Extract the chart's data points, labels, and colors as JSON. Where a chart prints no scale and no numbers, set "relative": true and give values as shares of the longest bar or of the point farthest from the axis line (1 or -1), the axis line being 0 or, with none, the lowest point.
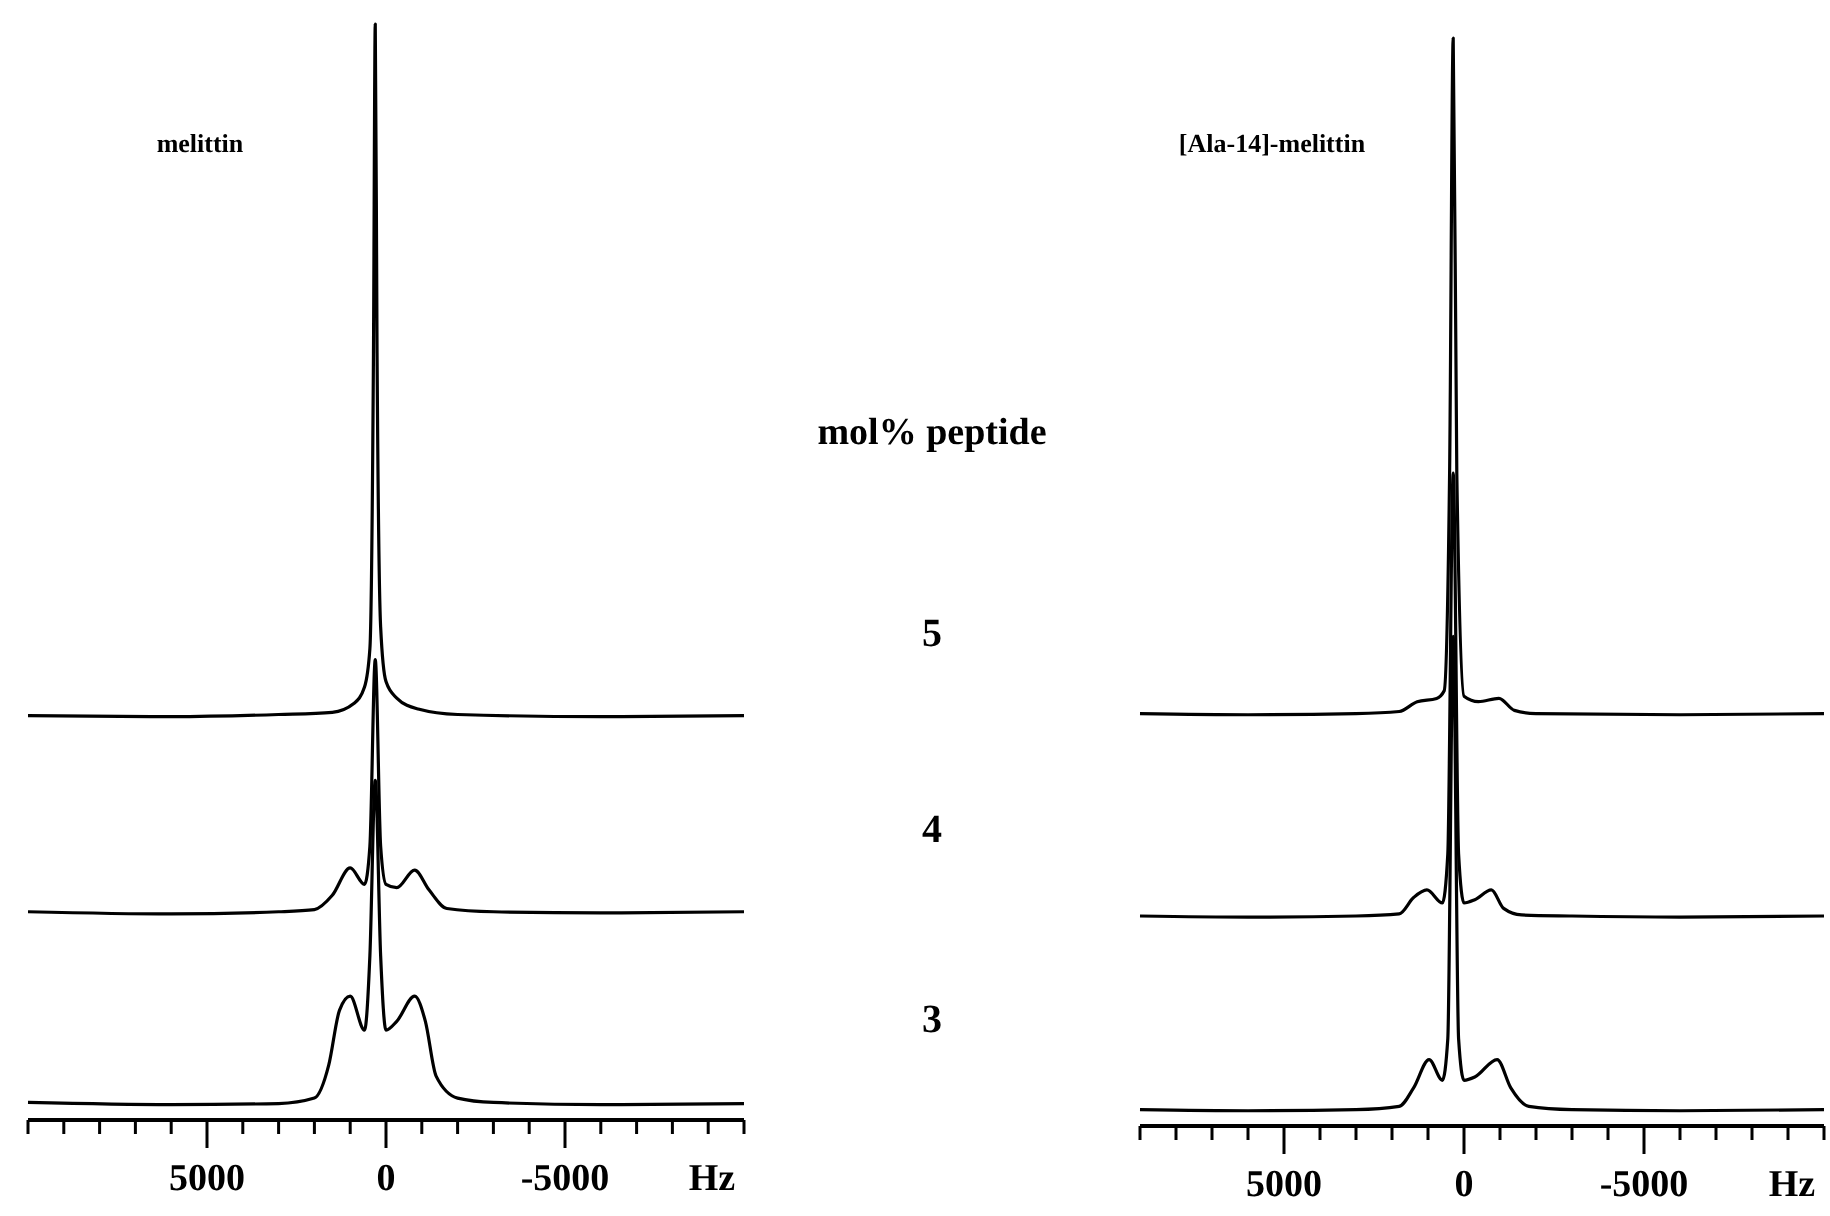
{
  "chart_data": [
    {
      "type": "line",
      "title": "melittin",
      "xlabel": "Hz",
      "relative": true,
      "xlim": [
        10000,
        -10000
      ],
      "xticks": [
        {
          "value": 10000,
          "label": null
        },
        {
          "value": 9000,
          "label": null
        },
        {
          "value": 8000,
          "label": null
        },
        {
          "value": 7000,
          "label": null
        },
        {
          "value": 6000,
          "label": null
        },
        5000,
        {
          "value": 4000,
          "label": null
        },
        {
          "value": 3000,
          "label": null
        },
        {
          "value": 2000,
          "label": null
        },
        {
          "value": 1000,
          "label": null
        },
        0,
        {
          "value": -1000,
          "label": null
        },
        {
          "value": -2000,
          "label": null
        },
        {
          "value": -3000,
          "label": null
        },
        {
          "value": -4000,
          "label": null
        },
        -5000,
        {
          "value": -6000,
          "label": null
        },
        {
          "value": -7000,
          "label": null
        },
        {
          "value": -8000,
          "label": null
        },
        {
          "value": -9000,
          "label": null
        },
        {
          "value": -10000,
          "label": null
        }
      ],
      "annotations": [
        "mol% peptide",
        "5",
        "4",
        "3"
      ],
      "series": [
        {
          "color": "#000000",
          "x": [
            10000,
            6000,
            3000,
            1500,
            900,
            600,
            450,
            350,
            300,
            250,
            150,
            0,
            -300,
            -900,
            -2000,
            -6000,
            -10000
          ],
          "values": [
            0.369,
            0.368,
            0.37,
            0.372,
            0.38,
            0.395,
            0.43,
            0.7,
            1.0,
            0.7,
            0.45,
            0.4,
            0.385,
            0.375,
            0.37,
            0.368,
            0.369
          ]
        },
        {
          "color": "#000000",
          "x": [
            10000,
            6000,
            3000,
            2000,
            1500,
            1000,
            600,
            450,
            300,
            150,
            0,
            -300,
            -800,
            -1200,
            -1700,
            -3000,
            -6000,
            -10000
          ],
          "values": [
            0.19,
            0.188,
            0.19,
            0.192,
            0.205,
            0.23,
            0.215,
            0.25,
            0.42,
            0.25,
            0.215,
            0.212,
            0.228,
            0.21,
            0.193,
            0.19,
            0.189,
            0.19
          ]
        },
        {
          "color": "#000000",
          "x": [
            10000,
            6000,
            3000,
            2000,
            1600,
            1300,
            1000,
            600,
            450,
            300,
            150,
            0,
            -300,
            -800,
            -1100,
            -1400,
            -2000,
            -3000,
            -6000,
            -10000
          ],
          "values": [
            0.016,
            0.014,
            0.015,
            0.02,
            0.05,
            0.1,
            0.113,
            0.082,
            0.15,
            0.31,
            0.15,
            0.082,
            0.09,
            0.113,
            0.09,
            0.04,
            0.02,
            0.016,
            0.014,
            0.015
          ]
        }
      ]
    },
    {
      "type": "line",
      "title": "[Ala-14]-melittin",
      "xlabel": "Hz",
      "relative": true,
      "xlim": [
        9000,
        -10000
      ],
      "xticks": [
        {
          "value": 9000,
          "label": null
        },
        {
          "value": 8000,
          "label": null
        },
        {
          "value": 7000,
          "label": null
        },
        {
          "value": 6000,
          "label": null
        },
        5000,
        {
          "value": 4000,
          "label": null
        },
        {
          "value": 3000,
          "label": null
        },
        {
          "value": 2000,
          "label": null
        },
        {
          "value": 1000,
          "label": null
        },
        0,
        {
          "value": -1000,
          "label": null
        },
        {
          "value": -2000,
          "label": null
        },
        {
          "value": -3000,
          "label": null
        },
        {
          "value": -4000,
          "label": null
        },
        -5000,
        {
          "value": -6000,
          "label": null
        },
        {
          "value": -7000,
          "label": null
        },
        {
          "value": -8000,
          "label": null
        },
        {
          "value": -9000,
          "label": null
        },
        {
          "value": -10000,
          "label": null
        }
      ],
      "series": [
        {
          "color": "#000000",
          "x": [
            9000,
            6000,
            3000,
            1800,
            1300,
            760,
            550,
            400,
            300,
            200,
            0,
            -400,
            -970,
            -1400,
            -2000,
            -6000,
            -10000
          ],
          "values": [
            0.379,
            0.378,
            0.379,
            0.381,
            0.39,
            0.393,
            0.4,
            0.6,
            1.0,
            0.6,
            0.395,
            0.39,
            0.393,
            0.382,
            0.379,
            0.378,
            0.379
          ]
        },
        {
          "color": "#000000",
          "x": [
            9000,
            6000,
            3000,
            1800,
            1400,
            1030,
            600,
            450,
            300,
            150,
            0,
            -300,
            -760,
            -1100,
            -1600,
            -3000,
            -6000,
            -10000
          ],
          "values": [
            0.193,
            0.192,
            0.193,
            0.195,
            0.21,
            0.217,
            0.205,
            0.25,
            0.6,
            0.25,
            0.205,
            0.208,
            0.217,
            0.2,
            0.194,
            0.193,
            0.192,
            0.193
          ]
        },
        {
          "color": "#000000",
          "x": [
            9000,
            6000,
            3000,
            1800,
            1400,
            970,
            600,
            450,
            300,
            150,
            0,
            -300,
            -920,
            -1300,
            -1800,
            -3000,
            -6000,
            -10000
          ],
          "values": [
            0.015,
            0.014,
            0.015,
            0.018,
            0.035,
            0.061,
            0.042,
            0.08,
            0.45,
            0.08,
            0.042,
            0.045,
            0.061,
            0.035,
            0.018,
            0.015,
            0.014,
            0.015
          ]
        }
      ]
    }
  ]
}
